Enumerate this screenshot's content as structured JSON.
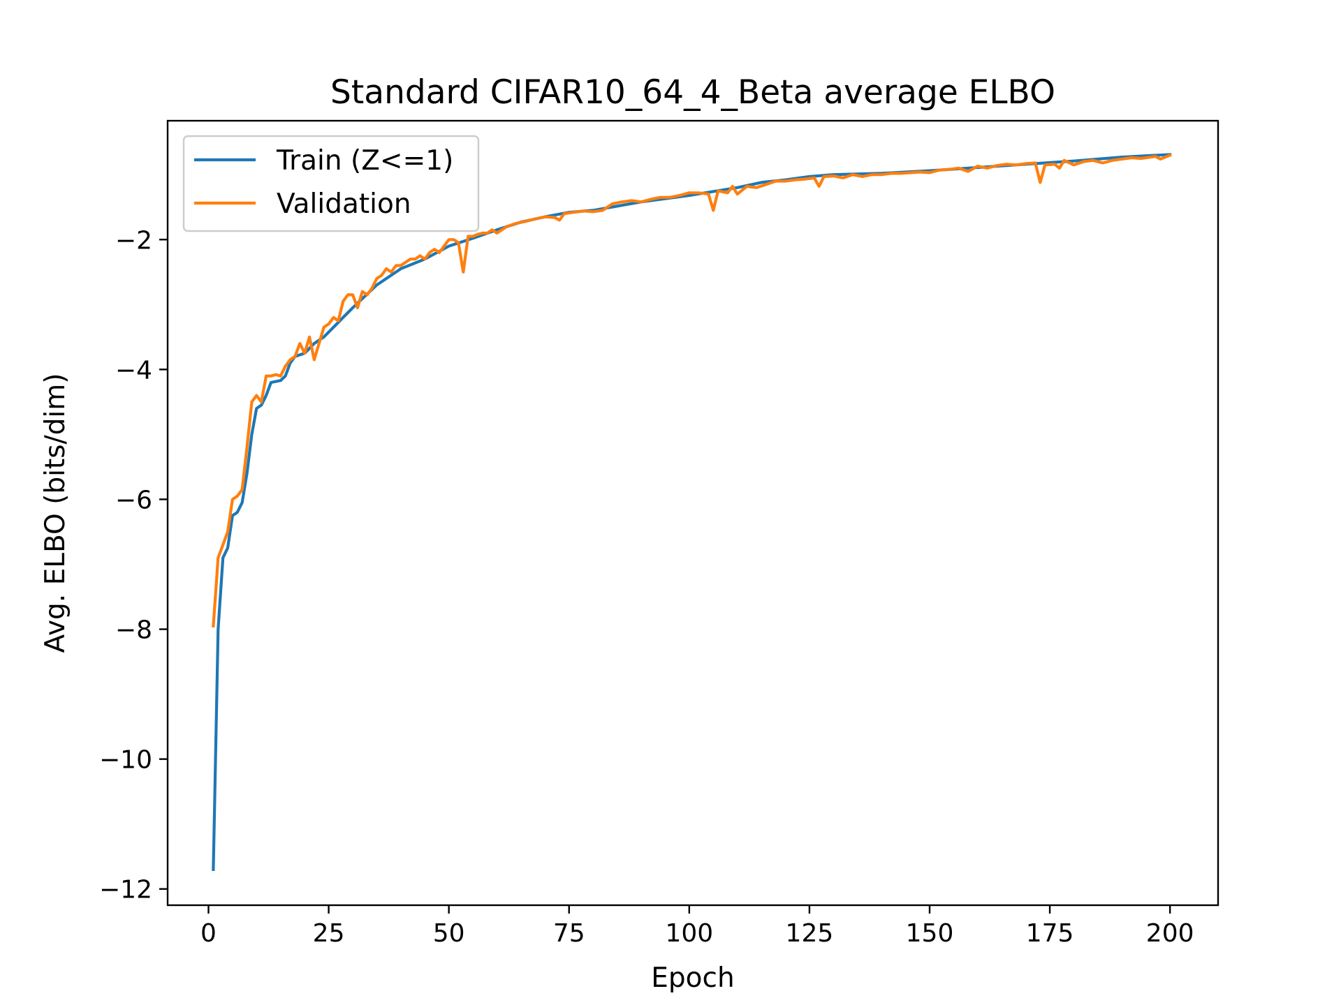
{
  "chart_data": {
    "type": "line",
    "title": "Standard CIFAR10_64_4_Beta average ELBO",
    "xlabel": "Epoch",
    "ylabel": "Avg. ELBO (bits/dim)",
    "xlim": [
      -8.5,
      210
    ],
    "ylim": [
      -12.25,
      -0.17
    ],
    "xticks": [
      0,
      25,
      50,
      75,
      100,
      125,
      150,
      175,
      200
    ],
    "yticks": [
      -12,
      -10,
      -8,
      -6,
      -4,
      -2
    ],
    "grid": false,
    "legend_position": "top-left",
    "series": [
      {
        "name": "Train (Z<=1)",
        "color": "#1f77b4",
        "x": [
          1,
          2,
          3,
          4,
          5,
          6,
          7,
          8,
          9,
          10,
          11,
          12,
          13,
          15,
          16,
          17,
          18,
          20,
          22,
          24,
          26,
          28,
          30,
          35,
          40,
          45,
          50,
          55,
          60,
          65,
          70,
          75,
          80,
          90,
          100,
          110,
          115,
          120,
          125,
          130,
          140,
          150,
          160,
          170,
          180,
          190,
          195,
          200
        ],
        "y": [
          -11.7,
          -8.0,
          -6.9,
          -6.75,
          -6.25,
          -6.2,
          -6.05,
          -5.6,
          -5.0,
          -4.6,
          -4.55,
          -4.4,
          -4.2,
          -4.17,
          -4.1,
          -3.9,
          -3.8,
          -3.75,
          -3.6,
          -3.5,
          -3.35,
          -3.2,
          -3.05,
          -2.7,
          -2.45,
          -2.3,
          -2.1,
          -1.98,
          -1.85,
          -1.73,
          -1.65,
          -1.58,
          -1.55,
          -1.42,
          -1.32,
          -1.2,
          -1.12,
          -1.08,
          -1.03,
          -1.0,
          -0.98,
          -0.94,
          -0.89,
          -0.84,
          -0.79,
          -0.73,
          -0.71,
          -0.69
        ]
      },
      {
        "name": "Validation",
        "color": "#ff7f0e",
        "x": [
          1,
          2,
          3,
          4,
          5,
          6,
          7,
          8,
          9,
          10,
          11,
          12,
          13,
          14,
          15,
          16,
          17,
          18,
          19,
          20,
          21,
          22,
          23,
          24,
          25,
          26,
          27,
          28,
          29,
          30,
          31,
          32,
          33,
          34,
          35,
          36,
          37,
          38,
          39,
          40,
          41,
          42,
          43,
          44,
          45,
          46,
          47,
          48,
          49,
          50,
          51,
          52,
          53,
          54,
          55,
          56,
          57,
          58,
          59,
          60,
          62,
          64,
          66,
          68,
          70,
          72,
          73,
          74,
          76,
          78,
          80,
          82,
          84,
          86,
          88,
          90,
          92,
          94,
          96,
          98,
          100,
          102,
          104,
          105,
          106,
          108,
          109,
          110,
          112,
          114,
          116,
          118,
          120,
          122,
          124,
          126,
          127,
          128,
          130,
          132,
          134,
          136,
          138,
          140,
          142,
          144,
          146,
          148,
          150,
          152,
          154,
          156,
          158,
          160,
          162,
          164,
          166,
          168,
          170,
          172,
          173,
          174,
          176,
          177,
          178,
          180,
          182,
          184,
          186,
          188,
          190,
          192,
          194,
          196,
          197,
          198,
          200
        ],
        "y": [
          -7.95,
          -6.9,
          -6.7,
          -6.5,
          -6.0,
          -5.95,
          -5.85,
          -5.2,
          -4.5,
          -4.4,
          -4.5,
          -4.1,
          -4.1,
          -4.08,
          -4.1,
          -3.95,
          -3.85,
          -3.8,
          -3.6,
          -3.75,
          -3.5,
          -3.85,
          -3.6,
          -3.35,
          -3.3,
          -3.2,
          -3.25,
          -2.95,
          -2.85,
          -2.85,
          -3.05,
          -2.8,
          -2.85,
          -2.75,
          -2.6,
          -2.55,
          -2.45,
          -2.5,
          -2.4,
          -2.4,
          -2.35,
          -2.3,
          -2.3,
          -2.25,
          -2.3,
          -2.2,
          -2.15,
          -2.2,
          -2.1,
          -2.0,
          -2.0,
          -2.05,
          -2.5,
          -1.95,
          -1.95,
          -1.92,
          -1.9,
          -1.9,
          -1.85,
          -1.9,
          -1.8,
          -1.75,
          -1.72,
          -1.68,
          -1.65,
          -1.66,
          -1.7,
          -1.6,
          -1.58,
          -1.56,
          -1.57,
          -1.55,
          -1.45,
          -1.42,
          -1.4,
          -1.42,
          -1.38,
          -1.35,
          -1.35,
          -1.32,
          -1.28,
          -1.28,
          -1.3,
          -1.55,
          -1.25,
          -1.28,
          -1.18,
          -1.3,
          -1.18,
          -1.2,
          -1.15,
          -1.1,
          -1.1,
          -1.08,
          -1.07,
          -1.05,
          -1.18,
          -1.03,
          -1.02,
          -1.05,
          -1.0,
          -1.03,
          -1.0,
          -1.0,
          -0.98,
          -0.98,
          -0.97,
          -0.96,
          -0.97,
          -0.93,
          -0.92,
          -0.9,
          -0.95,
          -0.87,
          -0.9,
          -0.86,
          -0.84,
          -0.85,
          -0.83,
          -0.82,
          -1.12,
          -0.85,
          -0.84,
          -0.9,
          -0.78,
          -0.85,
          -0.8,
          -0.78,
          -0.82,
          -0.78,
          -0.76,
          -0.74,
          -0.75,
          -0.73,
          -0.72,
          -0.76,
          -0.7
        ]
      }
    ]
  }
}
